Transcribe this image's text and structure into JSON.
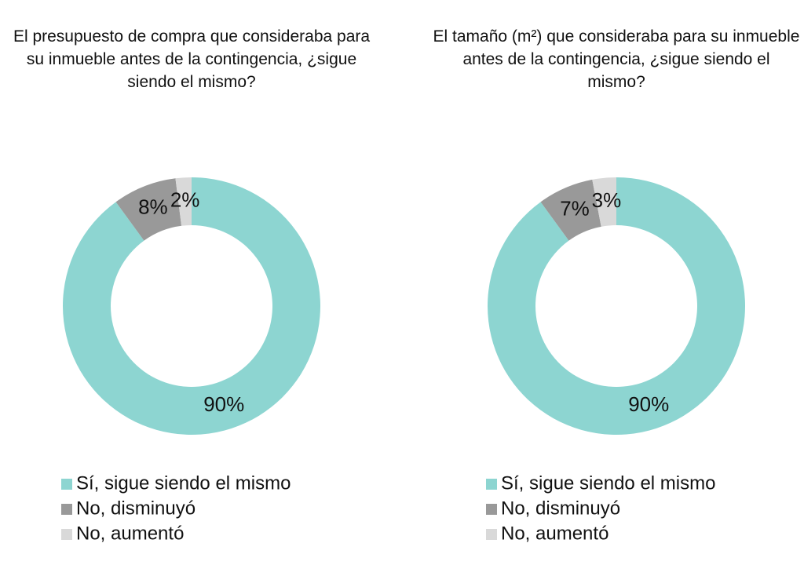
{
  "chart_data": [
    {
      "type": "donut",
      "title": "El presupuesto de compra que consideraba para su inmueble antes de la contingencia, ¿sigue siendo el mismo?",
      "categories": [
        "Sí, sigue siendo el mismo",
        "No, disminuyó",
        "No, aumentó"
      ],
      "values": [
        90,
        8,
        2
      ],
      "value_labels": [
        "90%",
        "8%",
        "2%"
      ],
      "colors": [
        "#8dd5d1",
        "#999999",
        "#d9d9d9"
      ]
    },
    {
      "type": "donut",
      "title": "El tamaño (m²) que consideraba para su inmueble antes de la contingencia, ¿sigue siendo el mismo?",
      "categories": [
        "Sí, sigue siendo el mismo",
        "No, disminuyó",
        "No, aumentó"
      ],
      "values": [
        90,
        7,
        3
      ],
      "value_labels": [
        "90%",
        "7%",
        "3%"
      ],
      "colors": [
        "#8dd5d1",
        "#999999",
        "#d9d9d9"
      ]
    }
  ]
}
